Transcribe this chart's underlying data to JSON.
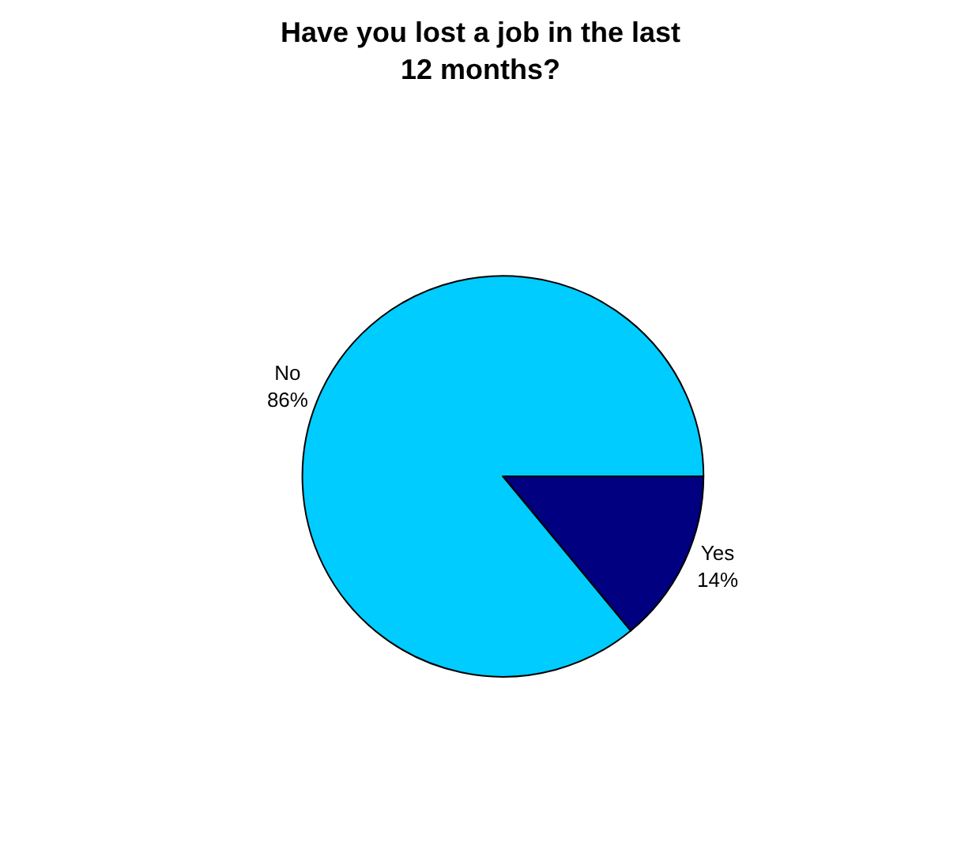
{
  "chart_data": {
    "type": "pie",
    "title": "Have you lost a job in the last\n12 months?",
    "categories": [
      "No",
      "Yes"
    ],
    "values": [
      86,
      14
    ],
    "value_labels": [
      "86%",
      "14%"
    ],
    "colors": [
      "#00ccff",
      "#000080"
    ],
    "legend": false
  }
}
